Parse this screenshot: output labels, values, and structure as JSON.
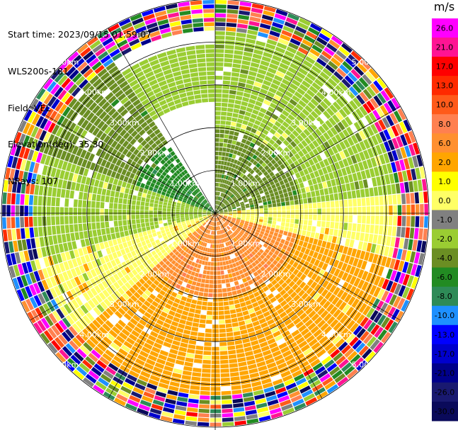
{
  "info": {
    "start_time": "Start time: 2023/09/15 01:59:07",
    "instrument": "WLS200s-181",
    "field": "Field: VEL",
    "elevation": "Elevation(deg): 35.30",
    "nrays": "NRays: 107"
  },
  "chart_data": {
    "type": "polar-ppi",
    "field": "VEL",
    "unit": "m/s",
    "range_ring_labels": [
      "1.00km",
      "2.00km",
      "3.00km",
      "4.00km",
      "5.00km"
    ],
    "range_rings_km": [
      1,
      2,
      3,
      4,
      5
    ],
    "max_range_km": 5.0,
    "nrays": 107,
    "colorbar": {
      "unit": "m/s",
      "tick_labels": [
        "26.0",
        "21.0",
        "17.0",
        "13.0",
        "10.0",
        "8.0",
        "6.0",
        "2.0",
        "1.0",
        "0.0",
        "-1.0",
        "-2.0",
        "-4.0",
        "-6.0",
        "-8.0",
        "-10.0",
        "-13.0",
        "-17.0",
        "-21.0",
        "-26.0",
        "-30.0"
      ],
      "colors": [
        "#ff00ff",
        "#ff1493",
        "#ff0000",
        "#ff2a00",
        "#ff5a1a",
        "#ff8050",
        "#ff9030",
        "#ffa500",
        "#ffff00",
        "#ffff66",
        "#808080",
        "#9acd32",
        "#6b8e23",
        "#228b22",
        "#2e8b57",
        "#1e90ff",
        "#0000ff",
        "#0000cd",
        "#00008b",
        "#191970",
        "#0a0a5a"
      ]
    },
    "sectors": [
      {
        "az_from": 0,
        "az_to": 85,
        "near_value": -4.0,
        "mid_value": -2.0
      },
      {
        "az_from": 85,
        "az_to": 105,
        "near_value": 0.0,
        "mid_value": 0.0
      },
      {
        "az_from": 105,
        "az_to": 230,
        "near_value": 6.0,
        "mid_value": 2.0
      },
      {
        "az_from": 230,
        "az_to": 255,
        "near_value": 0.0,
        "mid_value": 0.0
      },
      {
        "az_from": 255,
        "az_to": 290,
        "near_value": -2.0,
        "mid_value": -2.0
      },
      {
        "az_from": 290,
        "az_to": 325,
        "near_value": -6.0,
        "mid_value": -4.0
      }
    ],
    "no_data_sector": {
      "az_from": 325,
      "az_to": 360
    },
    "noise_beyond_km": 4.2
  }
}
